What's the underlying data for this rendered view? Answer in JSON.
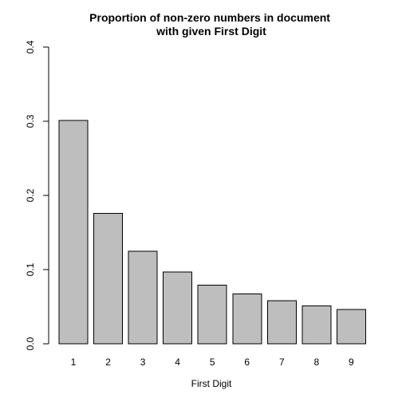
{
  "chart_data": {
    "type": "bar",
    "title": "Proportion of non-zero numbers in document\nwith given First Digit",
    "xlabel": "First Digit",
    "ylabel": "",
    "categories": [
      "1",
      "2",
      "3",
      "4",
      "5",
      "6",
      "7",
      "8",
      "9"
    ],
    "values": [
      0.301,
      0.176,
      0.125,
      0.097,
      0.079,
      0.067,
      0.058,
      0.051,
      0.046
    ],
    "ylim": [
      0,
      0.4
    ],
    "yticks": [
      "0.0",
      "0.1",
      "0.2",
      "0.3",
      "0.4"
    ],
    "grid": false,
    "legend": "none",
    "colors": {
      "bar_fill": "#bebebe",
      "bar_stroke": "#000000",
      "axis": "#000000",
      "background": "#ffffff"
    }
  }
}
